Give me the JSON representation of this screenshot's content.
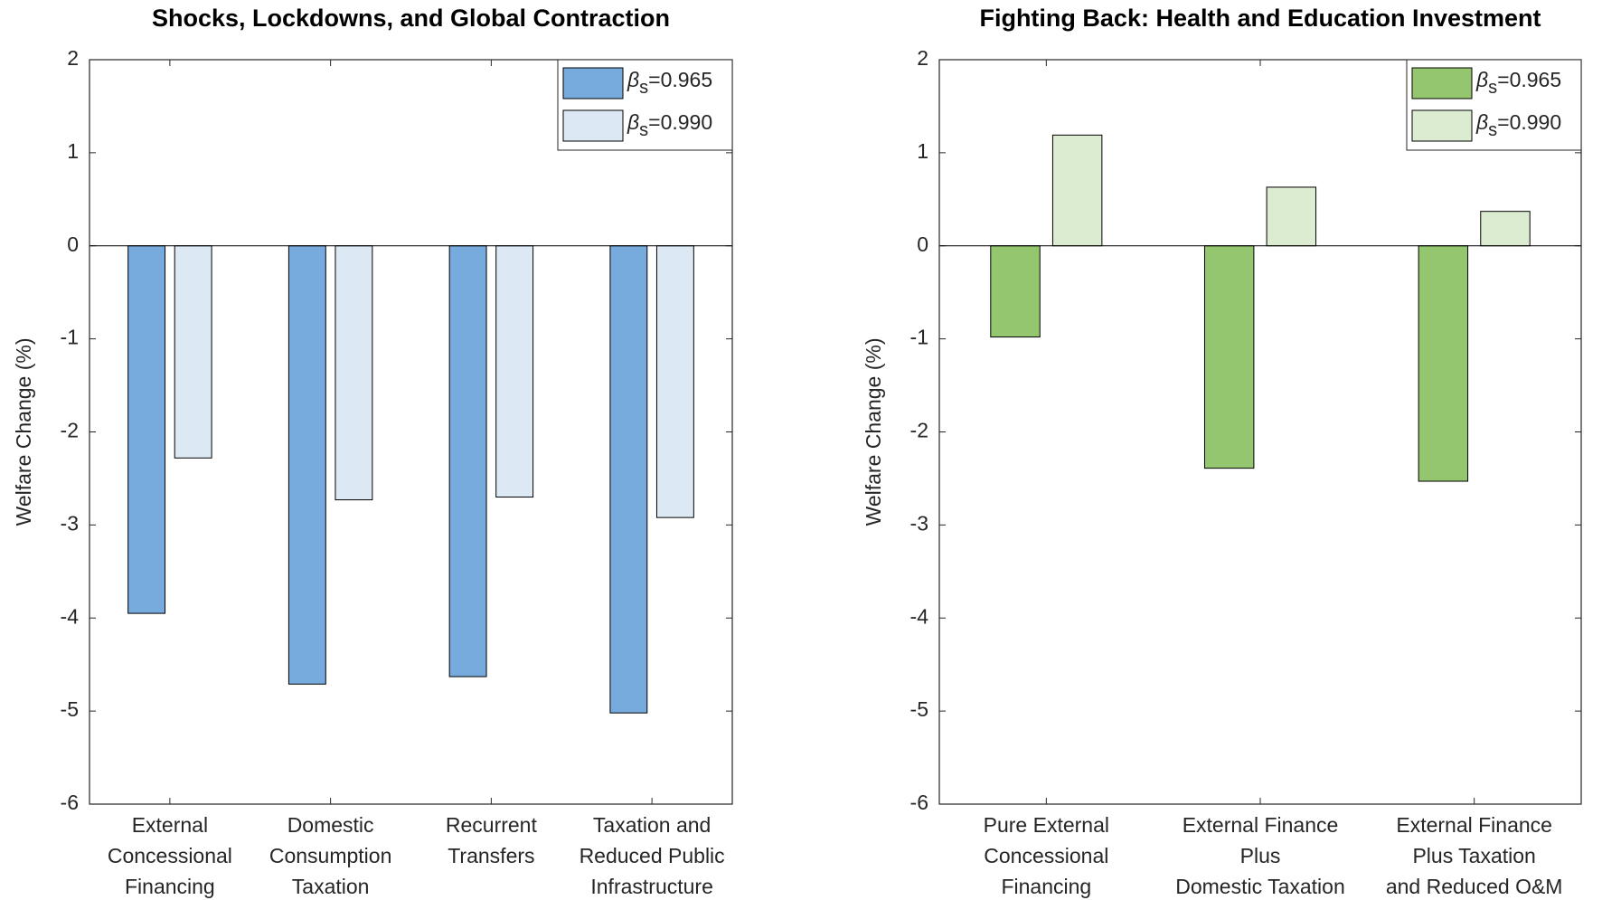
{
  "chart_data": [
    {
      "type": "bar",
      "title": "Shocks, Lockdowns, and Global Contraction",
      "ylabel": "Welfare Change (%)",
      "categories": [
        [
          "External",
          "Concessional",
          "Financing"
        ],
        [
          "Domestic",
          "Consumption",
          "Taxation"
        ],
        [
          "Recurrent",
          "Transfers"
        ],
        [
          "Taxation and",
          "Reduced Public",
          "Infrastructure"
        ]
      ],
      "series": [
        {
          "name": "βs=0.965",
          "color": "#77aadd",
          "values": [
            -3.95,
            -4.71,
            -4.63,
            -5.02
          ]
        },
        {
          "name": "βs=0.990",
          "color": "#dce9f5",
          "values": [
            -2.28,
            -2.73,
            -2.7,
            -2.92
          ]
        }
      ],
      "ylim": [
        -6,
        2
      ],
      "yticks": [
        -6,
        -5,
        -4,
        -3,
        -2,
        -1,
        0,
        1,
        2
      ],
      "legend": "upper right"
    },
    {
      "type": "bar",
      "title": "Fighting Back: Health and Education Investment",
      "ylabel": "Welfare Change (%)",
      "categories": [
        [
          "Pure External",
          "Concessional",
          "Financing"
        ],
        [
          "External Finance",
          "Plus",
          "Domestic Taxation"
        ],
        [
          "External Finance",
          "Plus Taxation",
          "and Reduced O&M"
        ]
      ],
      "series": [
        {
          "name": "βs=0.965",
          "color": "#93c66e",
          "values": [
            -0.98,
            -2.39,
            -2.53
          ]
        },
        {
          "name": "βs=0.990",
          "color": "#dcecd0",
          "values": [
            1.19,
            0.63,
            0.37
          ]
        }
      ],
      "ylim": [
        -6,
        2
      ],
      "yticks": [
        -6,
        -5,
        -4,
        -3,
        -2,
        -1,
        0,
        1,
        2
      ],
      "legend": "upper right"
    }
  ]
}
